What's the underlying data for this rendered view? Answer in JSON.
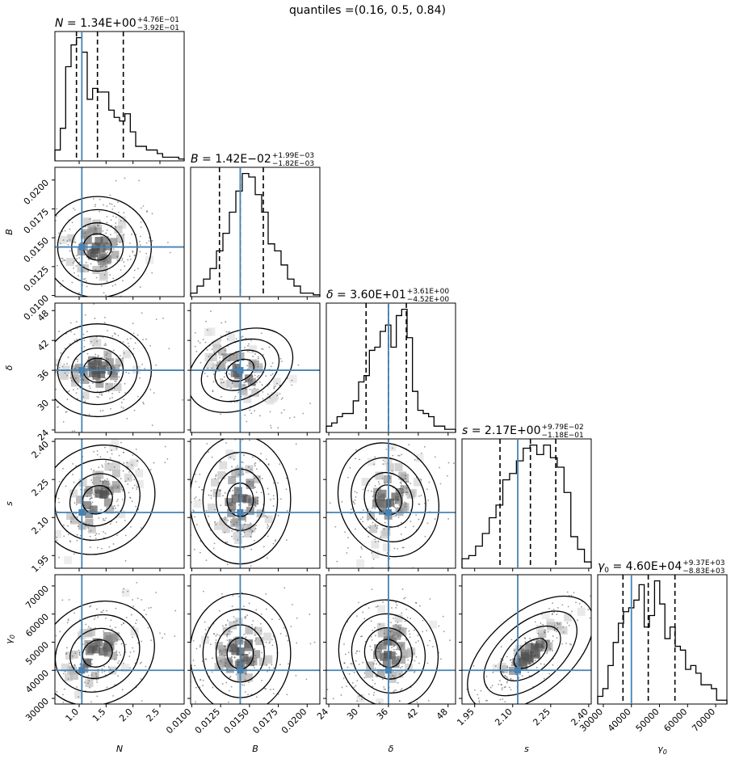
{
  "suptitle": "quantiles =(0.16, 0.5, 0.84)",
  "chart_data": {
    "type": "corner",
    "colors": {
      "truth": "#4682b4",
      "hist": "#000000",
      "contour": "#000000",
      "quantile": "#000000"
    },
    "quantiles": [
      0.16,
      0.5,
      0.84
    ],
    "parameters": [
      {
        "symbol": "N",
        "axis_label": "N",
        "title": {
          "name": "N",
          "value": "1.34E+00",
          "plus": "+4.76E−01",
          "minus": "−3.92E−01"
        },
        "range": [
          0.55,
          2.95
        ],
        "ticks": [
          1.0,
          1.5,
          2.0,
          2.5
        ],
        "tick_labels": [
          "1.0",
          "1.5",
          "2.0",
          "2.5"
        ],
        "truth": 1.05,
        "quantile_values": [
          0.95,
          1.34,
          1.82
        ],
        "hist_counts": [
          3,
          9,
          26,
          32,
          34,
          30,
          17,
          20,
          19,
          19,
          14,
          12,
          11,
          13,
          8,
          4,
          4,
          3,
          3,
          2,
          1,
          1,
          1,
          0.5
        ]
      },
      {
        "symbol": "B",
        "axis_label": "B",
        "title": {
          "name": "B",
          "value": "1.42E−02",
          "plus": "+1.99E−03",
          "minus": "−1.82E−03"
        },
        "range": [
          0.0099,
          0.0211
        ],
        "ticks": [
          0.01,
          0.0125,
          0.015,
          0.0175,
          0.02
        ],
        "tick_labels": [
          "0.0100",
          "0.0125",
          "0.0150",
          "0.0175",
          "0.0200"
        ],
        "truth": 0.0142,
        "quantile_values": [
          0.0124,
          0.0142,
          0.0162
        ],
        "hist_counts": [
          1,
          3,
          5,
          8,
          13,
          18,
          24,
          30,
          35,
          34,
          29,
          24,
          15,
          13,
          9,
          5,
          3,
          1,
          1,
          0.5
        ]
      },
      {
        "symbol": "δ",
        "axis_label": "δ",
        "title": {
          "name": "δ",
          "value": "3.60E+01",
          "plus": "+3.61E+00",
          "minus": "−4.52E+00"
        },
        "range": [
          23.5,
          49.5
        ],
        "ticks": [
          24,
          30,
          36,
          42,
          48
        ],
        "tick_labels": [
          "24",
          "30",
          "36",
          "42",
          "48"
        ],
        "truth": 36,
        "quantile_values": [
          31.5,
          36.0,
          39.6
        ],
        "hist_counts": [
          2,
          3,
          5,
          6,
          6,
          10,
          16,
          18,
          26,
          27,
          32,
          34,
          27,
          37,
          39,
          30,
          13,
          7,
          6,
          5,
          2,
          2,
          1,
          1
        ]
      },
      {
        "symbol": "s",
        "axis_label": "s",
        "title": {
          "name": "s",
          "value": "2.17E+00",
          "plus": "+9.79E−02",
          "minus": "−1.18E−01"
        },
        "range": [
          1.9,
          2.41
        ],
        "ticks": [
          1.95,
          2.1,
          2.25,
          2.4
        ],
        "tick_labels": [
          "1.95",
          "2.10",
          "2.25",
          "2.40"
        ],
        "truth": 2.12,
        "quantile_values": [
          2.05,
          2.17,
          2.27
        ],
        "hist_counts": [
          3,
          4,
          7,
          11,
          16,
          20,
          28,
          30,
          34,
          38,
          39,
          36,
          39,
          35,
          32,
          24,
          10,
          6,
          2
        ]
      },
      {
        "symbol": "γ0",
        "axis_label": "γ0",
        "title": {
          "name": "γ0",
          "value": "4.60E+04",
          "plus": "+9.37E+03",
          "minus": "−8.83E+03"
        },
        "range": [
          28000,
          74000
        ],
        "ticks": [
          30000,
          40000,
          50000,
          60000,
          70000
        ],
        "tick_labels": [
          "30000",
          "40000",
          "50000",
          "60000",
          "70000"
        ],
        "truth": 40000,
        "quantile_values": [
          37000,
          46000,
          55500
        ],
        "hist_counts": [
          2,
          4,
          10,
          16,
          21,
          24,
          25,
          27,
          31,
          20,
          23,
          32,
          26,
          17,
          20,
          15,
          14,
          9,
          10,
          8,
          5,
          5,
          4,
          1,
          1
        ]
      }
    ]
  }
}
